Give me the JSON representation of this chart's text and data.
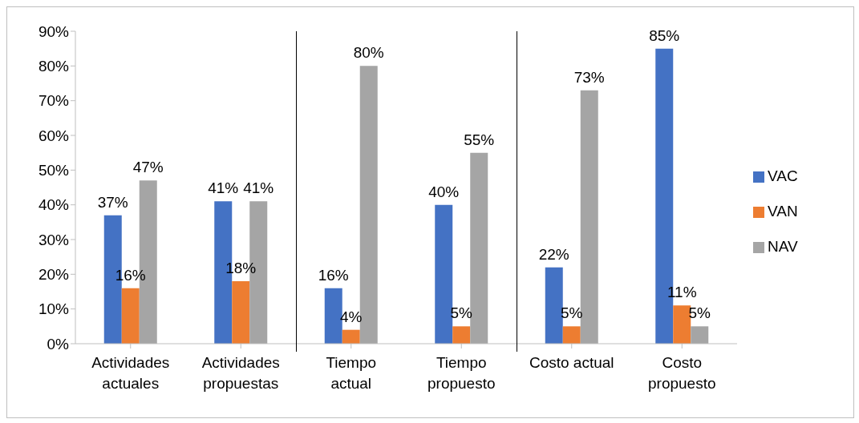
{
  "chart_data": {
    "type": "bar",
    "categories": [
      "Actividades actuales",
      "Actividades propuestas",
      "Tiempo actual",
      "Tiempo propuesto",
      "Costo actual",
      "Costo propuesto"
    ],
    "series": [
      {
        "name": "VAC",
        "color": "#4472c4",
        "values": [
          37,
          41,
          16,
          40,
          22,
          85
        ],
        "value_labels": [
          "37%",
          "41%",
          "16%",
          "40%",
          "22%",
          "85%"
        ]
      },
      {
        "name": "VAN",
        "color": "#ed7d31",
        "values": [
          16,
          18,
          4,
          5,
          5,
          11
        ],
        "value_labels": [
          "16%",
          "18%",
          "4%",
          "5%",
          "5%",
          "11%"
        ]
      },
      {
        "name": "NAV",
        "color": "#a5a5a5",
        "values": [
          47,
          41,
          80,
          55,
          73,
          5
        ],
        "value_labels": [
          "47%",
          "41%",
          "80%",
          "55%",
          "73%",
          "5%"
        ]
      }
    ],
    "ylim": [
      0,
      90
    ],
    "yticks": [
      {
        "value": 0,
        "label": "0%"
      },
      {
        "value": 10,
        "label": "10%"
      },
      {
        "value": 20,
        "label": "20%"
      },
      {
        "value": 30,
        "label": "30%"
      },
      {
        "value": 40,
        "label": "40%"
      },
      {
        "value": 50,
        "label": "50%"
      },
      {
        "value": 60,
        "label": "60%"
      },
      {
        "value": 70,
        "label": "70%"
      },
      {
        "value": 80,
        "label": "80%"
      },
      {
        "value": 90,
        "label": "90%"
      }
    ],
    "grid": false,
    "legend": "right"
  }
}
